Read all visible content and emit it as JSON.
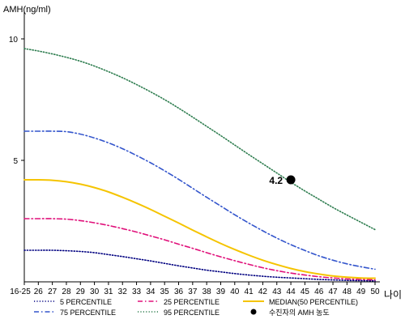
{
  "chart_data": {
    "type": "line",
    "ylabel": "AMH(ng/ml)",
    "xlabel": "나이",
    "categories": [
      "16-25",
      "26",
      "27",
      "28",
      "29",
      "30",
      "31",
      "32",
      "33",
      "34",
      "35",
      "36",
      "37",
      "38",
      "39",
      "40",
      "41",
      "42",
      "43",
      "44",
      "45",
      "46",
      "47",
      "48",
      "49",
      "50"
    ],
    "ylim": [
      0,
      11
    ],
    "yticks": [
      5,
      10
    ],
    "grid": false,
    "series": [
      {
        "name": "5 PERCENTILE",
        "color": "#000080",
        "dash": "dotted",
        "values": [
          1.3,
          1.3,
          1.3,
          1.28,
          1.25,
          1.2,
          1.12,
          1.04,
          0.95,
          0.86,
          0.76,
          0.66,
          0.57,
          0.48,
          0.41,
          0.34,
          0.28,
          0.23,
          0.19,
          0.16,
          0.13,
          0.1,
          0.08,
          0.06,
          0.05,
          0.04
        ]
      },
      {
        "name": "25 PERCENTILE",
        "color": "#e0107a",
        "dash": "dashdot",
        "values": [
          2.6,
          2.6,
          2.6,
          2.58,
          2.52,
          2.43,
          2.32,
          2.19,
          2.05,
          1.89,
          1.73,
          1.55,
          1.38,
          1.2,
          1.03,
          0.87,
          0.72,
          0.58,
          0.46,
          0.36,
          0.28,
          0.21,
          0.16,
          0.12,
          0.1,
          0.08
        ]
      },
      {
        "name": "MEDIAN(50 PERCENTILE)",
        "color": "#f5c400",
        "dash": "solid",
        "values": [
          4.2,
          4.2,
          4.18,
          4.12,
          4.02,
          3.88,
          3.7,
          3.48,
          3.24,
          2.98,
          2.7,
          2.42,
          2.13,
          1.85,
          1.58,
          1.33,
          1.1,
          0.89,
          0.71,
          0.55,
          0.42,
          0.32,
          0.24,
          0.19,
          0.16,
          0.15
        ]
      },
      {
        "name": "75 PERCENTILE",
        "color": "#3355cc",
        "dash": "dashdot",
        "values": [
          6.2,
          6.2,
          6.2,
          6.18,
          6.08,
          5.92,
          5.72,
          5.48,
          5.2,
          4.9,
          4.57,
          4.22,
          3.85,
          3.48,
          3.12,
          2.76,
          2.42,
          2.1,
          1.8,
          1.53,
          1.29,
          1.07,
          0.89,
          0.74,
          0.62,
          0.52
        ]
      },
      {
        "name": "95 PERCENTILE",
        "color": "#2e7d4f",
        "dash": "dotted",
        "values": [
          9.6,
          9.5,
          9.38,
          9.24,
          9.08,
          8.88,
          8.65,
          8.4,
          8.12,
          7.82,
          7.5,
          7.15,
          6.78,
          6.4,
          6.02,
          5.63,
          5.24,
          4.86,
          4.48,
          4.1,
          3.74,
          3.4,
          3.06,
          2.75,
          2.45,
          2.15
        ]
      }
    ],
    "patient_point": {
      "name": "수진자의 AMH 농도",
      "x": "44",
      "y": 4.2,
      "label": "4.2",
      "color": "#000000"
    }
  }
}
